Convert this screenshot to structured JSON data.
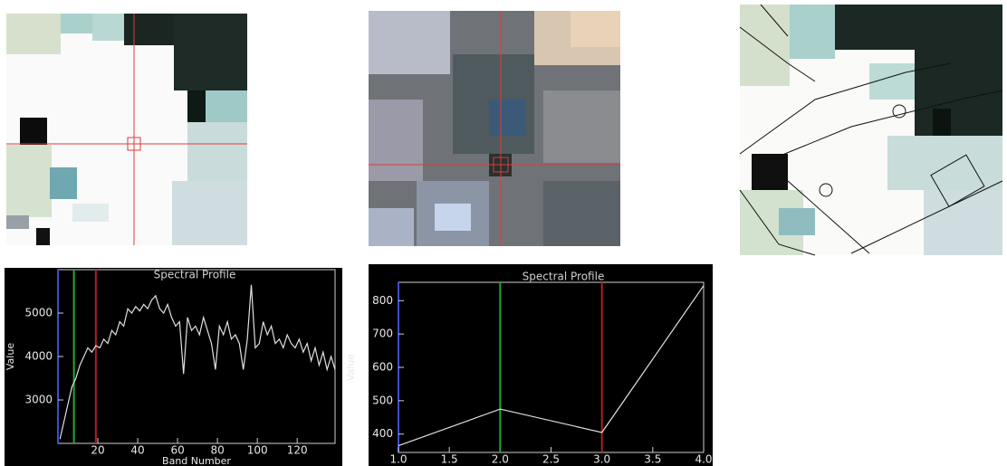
{
  "chart_data": [
    {
      "type": "line",
      "title": "Spectral Profile",
      "x_label": "Band Number",
      "y_label": "Value",
      "x": [
        1,
        3,
        5,
        7,
        9,
        11,
        13,
        15,
        17,
        19,
        21,
        23,
        25,
        27,
        29,
        31,
        33,
        35,
        37,
        39,
        41,
        43,
        45,
        47,
        49,
        51,
        53,
        55,
        57,
        59,
        61,
        63,
        65,
        67,
        69,
        71,
        73,
        75,
        77,
        79,
        81,
        83,
        85,
        87,
        89,
        91,
        93,
        95,
        97,
        99,
        101,
        103,
        105,
        107,
        109,
        111,
        113,
        115,
        117,
        119,
        121,
        123,
        125,
        127,
        129,
        131,
        133,
        135,
        137,
        139
      ],
      "values": [
        2100,
        2500,
        2900,
        3300,
        3500,
        3800,
        4000,
        4200,
        4100,
        4250,
        4200,
        4400,
        4300,
        4600,
        4500,
        4800,
        4700,
        5100,
        5000,
        5150,
        5050,
        5200,
        5100,
        5300,
        5400,
        5100,
        5000,
        5200,
        4900,
        4700,
        4800,
        3600,
        4900,
        4600,
        4700,
        4500,
        4900,
        4600,
        4300,
        3700,
        4700,
        4500,
        4800,
        4400,
        4500,
        4300,
        3700,
        4400,
        5650,
        4200,
        4300,
        4800,
        4500,
        4700,
        4300,
        4400,
        4200,
        4500,
        4300,
        4200,
        4400,
        4100,
        4300,
        3900,
        4200,
        3800,
        4100,
        3700,
        4000,
        3700
      ],
      "xlim": [
        0,
        139
      ],
      "ylim": [
        2000,
        6000
      ],
      "xticks": [
        20,
        40,
        60,
        80,
        100,
        120
      ],
      "yticks": [
        3000,
        4000,
        5000
      ],
      "color": "#e0e0e0",
      "markers": [
        {
          "x": 8,
          "color": "#1fa83a"
        },
        {
          "x": 19,
          "color": "#b02020"
        }
      ]
    },
    {
      "type": "line",
      "title": "Spectral Profile",
      "x_label": "Band Number",
      "y_label": "Value",
      "x": [
        1,
        2,
        3,
        4
      ],
      "values": [
        365,
        475,
        405,
        845
      ],
      "xlim": [
        1,
        4
      ],
      "ylim": [
        345,
        855
      ],
      "xticks": [
        {
          "value": 1,
          "label": "1.0"
        },
        {
          "value": 1.5,
          "label": "1.5"
        },
        {
          "value": 2,
          "label": "2.0"
        },
        {
          "value": 2.5,
          "label": "2.5"
        },
        {
          "value": 3,
          "label": "3.0"
        },
        {
          "value": 3.5,
          "label": "3.5"
        },
        {
          "value": 4,
          "label": "4.0"
        }
      ],
      "yticks": [
        400,
        500,
        600,
        700,
        800
      ],
      "color": "#e0e0e0",
      "markers": [
        {
          "x": 2,
          "color": "#1fa83a"
        },
        {
          "x": 3,
          "color": "#b02020"
        }
      ]
    }
  ]
}
